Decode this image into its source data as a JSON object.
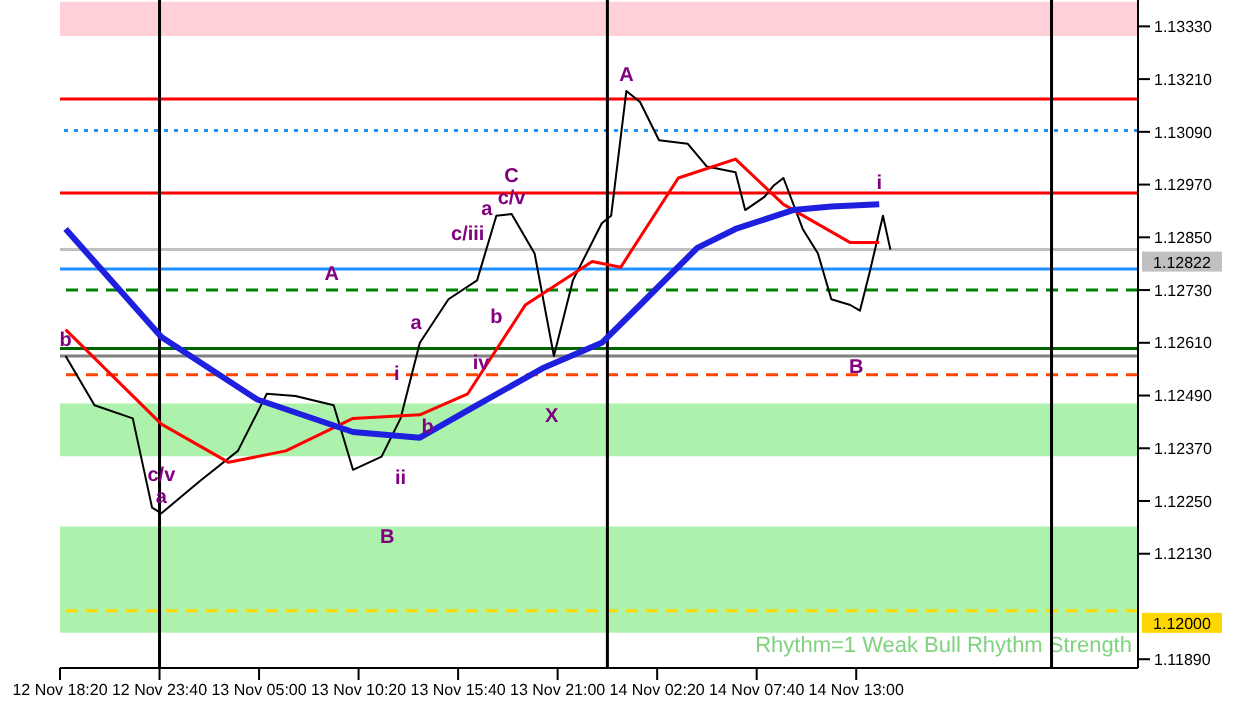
{
  "chart_data": {
    "type": "line",
    "xlim": [
      "--11-12T18:20",
      "--11-15T04:06"
    ],
    "ylim": [
      1.1187,
      1.1339
    ],
    "xticks": [
      {
        "value": "--11-12T18:20",
        "label": "12 Nov 18:20"
      },
      {
        "value": "--11-12T23:40",
        "label": "12 Nov 23:40"
      },
      {
        "value": "--11-13T05:00",
        "label": "13 Nov 05:00"
      },
      {
        "value": "--11-13T10:20",
        "label": "13 Nov 10:20"
      },
      {
        "value": "--11-13T15:40",
        "label": "13 Nov 15:40"
      },
      {
        "value": "--11-13T21:00",
        "label": "13 Nov 21:00"
      },
      {
        "value": "--11-14T02:20",
        "label": "14 Nov 02:20"
      },
      {
        "value": "--11-14T07:40",
        "label": "14 Nov 07:40"
      },
      {
        "value": "--11-14T13:00",
        "label": "14 Nov 13:00"
      }
    ],
    "yticks": [
      {
        "value": 1.1189,
        "label": "1.11890"
      },
      {
        "value": 1.1213,
        "label": "1.12130"
      },
      {
        "value": 1.1225,
        "label": "1.12250"
      },
      {
        "value": 1.1237,
        "label": "1.12370"
      },
      {
        "value": 1.1249,
        "label": "1.12490"
      },
      {
        "value": 1.1261,
        "label": "1.12610"
      },
      {
        "value": 1.1273,
        "label": "1.12730"
      },
      {
        "value": 1.1285,
        "label": "1.12850"
      },
      {
        "value": 1.1297,
        "label": "1.12970"
      },
      {
        "value": 1.1309,
        "label": "1.13090"
      },
      {
        "value": 1.1321,
        "label": "1.13210"
      },
      {
        "value": 1.1333,
        "label": "1.13330"
      }
    ],
    "series": [
      {
        "color": "#000000",
        "x": [
          "--11-12T18:38",
          "--11-12T20:11",
          "--11-12T22:14",
          "--11-12T23:16",
          "--11-12T23:46",
          "--11-13T01:49",
          "--11-13T03:52",
          "--11-13T05:25",
          "--11-13T06:57",
          "--11-13T09:00",
          "--11-13T10:02",
          "--11-13T11:34",
          "--11-13T12:35",
          "--11-13T13:37",
          "--11-13T15:09",
          "--11-13T16:41",
          "--11-13T17:43",
          "--11-13T18:32",
          "--11-13T19:46",
          "--11-13T20:48",
          "--11-13T21:49",
          "--11-13T23:22",
          "--11-13T23:52",
          "--11-14T00:41",
          "--11-14T01:25",
          "--11-14T02:26",
          "--11-14T03:58",
          "--11-14T05:00",
          "--11-14T06:32",
          "--11-14T07:03",
          "--11-14T08:05",
          "--11-14T08:35",
          "--11-14T09:06",
          "--11-14T10:08",
          "--11-14T10:57",
          "--11-14T11:40",
          "--11-14T12:41",
          "--11-14T13:12",
          "--11-14T13:43",
          "--11-14T14:26",
          "--11-14T14:50"
        ],
        "values": [
          1.1258,
          1.12468,
          1.12438,
          1.12235,
          1.12222,
          1.12295,
          1.12364,
          1.12494,
          1.12489,
          1.12468,
          1.12321,
          1.12351,
          1.12438,
          1.1261,
          1.12709,
          1.12752,
          1.12899,
          1.12903,
          1.12813,
          1.1258,
          1.12752,
          1.12882,
          1.12899,
          1.13183,
          1.13158,
          1.13071,
          1.13063,
          1.13011,
          1.12998,
          1.12912,
          1.12942,
          1.12968,
          1.12985,
          1.12869,
          1.12813,
          1.12709,
          1.12696,
          1.12683,
          1.1277,
          1.12899,
          1.12822
        ]
      },
      {
        "color": "#ff0000",
        "x": [
          "--11-12T18:38",
          "--11-12T23:46",
          "--11-13T03:22",
          "--11-13T06:26",
          "--11-13T10:02",
          "--11-13T13:37",
          "--11-13T16:11",
          "--11-13T19:16",
          "--11-13T22:51",
          "--11-14T00:23",
          "--11-14T03:28",
          "--11-14T06:32",
          "--11-14T09:06",
          "--11-14T12:41",
          "--11-14T14:14"
        ],
        "values": [
          1.1264,
          1.12425,
          1.12338,
          1.12364,
          1.12438,
          1.12446,
          1.12494,
          1.12696,
          1.12795,
          1.12782,
          1.12985,
          1.13028,
          1.12925,
          1.12838,
          1.12838
        ]
      },
      {
        "color": "#1f1fe0",
        "x": [
          "--11-12T18:38",
          "--11-12T23:46",
          "--11-13T04:54",
          "--11-13T10:02",
          "--11-13T13:37",
          "--11-13T16:41",
          "--11-13T20:17",
          "--11-13T23:22",
          "--11-14T01:25",
          "--11-14T04:29",
          "--11-14T06:32",
          "--11-14T09:37",
          "--11-14T11:40",
          "--11-14T14:14"
        ],
        "values": [
          1.12869,
          1.12623,
          1.12481,
          1.12407,
          1.12394,
          1.12468,
          1.12554,
          1.1261,
          1.12696,
          1.12826,
          1.12869,
          1.12912,
          1.1292,
          1.12925
        ]
      }
    ],
    "ref_lines": [
      {
        "axis": "y",
        "value": 1.12822,
        "label": "1.12822",
        "color": "#c0c0c0"
      },
      {
        "axis": "y",
        "value": 1.12,
        "label": "1.12000",
        "color": "#ffd700",
        "line_style": "dashed"
      },
      {
        "axis": "y",
        "value": 1.13165,
        "color": "#ff0000"
      },
      {
        "axis": "y",
        "value": 1.12951,
        "color": "#ff0000"
      },
      {
        "axis": "y",
        "value": 1.13093,
        "color": "#1e90ff",
        "line_style": "dotted"
      },
      {
        "axis": "y",
        "value": 1.12778,
        "color": "#1e90ff"
      },
      {
        "axis": "y",
        "value": 1.1273,
        "color": "#008000",
        "line_style": "dashed"
      },
      {
        "axis": "y",
        "value": 1.12597,
        "color": "#006400"
      },
      {
        "axis": "y",
        "value": 1.1258,
        "color": "#808080"
      },
      {
        "axis": "y",
        "value": 1.12537,
        "color": "#ff4500",
        "line_style": "dashed"
      },
      {
        "axis": "x",
        "value": "--11-12T23:40",
        "color": "#000000"
      },
      {
        "axis": "x",
        "value": "--11-13T23:40",
        "color": "#000000"
      },
      {
        "axis": "x",
        "value": "--11-14T23:28",
        "color": "#000000"
      }
    ],
    "bands": [
      {
        "axis": "y",
        "from": 1.13308,
        "to": 1.13386,
        "color": "#ffc0cb"
      },
      {
        "axis": "y",
        "from": 1.12352,
        "to": 1.12472,
        "color": "#90ee90"
      },
      {
        "axis": "y",
        "from": 1.1195,
        "to": 1.12192,
        "color": "#90ee90"
      }
    ],
    "annotations": [
      {
        "text": "c/v",
        "x": "--11-12T23:46",
        "y": 1.12222
      },
      {
        "text": "a",
        "x": "--11-12T23:46",
        "y": 1.12222
      },
      {
        "text": "b",
        "x": "--11-12T18:38",
        "y": 1.1258
      },
      {
        "text": "A",
        "x": "--11-13T08:54",
        "y": 1.1273
      },
      {
        "text": "B",
        "x": "--11-13T11:52",
        "y": 1.12209
      },
      {
        "text": "C",
        "x": "--11-13T18:32",
        "y": 1.12903
      },
      {
        "text": "c/v",
        "x": "--11-13T18:32",
        "y": 1.12903
      },
      {
        "text": "a",
        "x": "--11-13T17:12",
        "y": 1.12877
      },
      {
        "text": "c/iii",
        "x": "--11-13T16:11",
        "y": 1.12821
      },
      {
        "text": "b",
        "x": "--11-13T17:43",
        "y": 1.12709
      },
      {
        "text": "iv",
        "x": "--11-13T16:54",
        "y": 1.12606
      },
      {
        "text": "a",
        "x": "--11-13T13:25",
        "y": 1.12619
      },
      {
        "text": "i",
        "x": "--11-13T12:23",
        "y": 1.12502
      },
      {
        "text": "b",
        "x": "--11-13T14:02",
        "y": 1.12459
      },
      {
        "text": "ii",
        "x": "--11-13T12:35",
        "y": 1.12343
      },
      {
        "text": "X",
        "x": "--11-13T20:41",
        "y": 1.12485
      },
      {
        "text": "A",
        "x": "--11-14T00:41",
        "y": 1.13183
      },
      {
        "text": "B",
        "x": "--11-14T13:00",
        "y": 1.12597
      },
      {
        "text": "i",
        "x": "--11-14T14:14",
        "y": 1.12938
      },
      "Rhythm=1 Weak Bull Rhythm Strength"
    ]
  }
}
